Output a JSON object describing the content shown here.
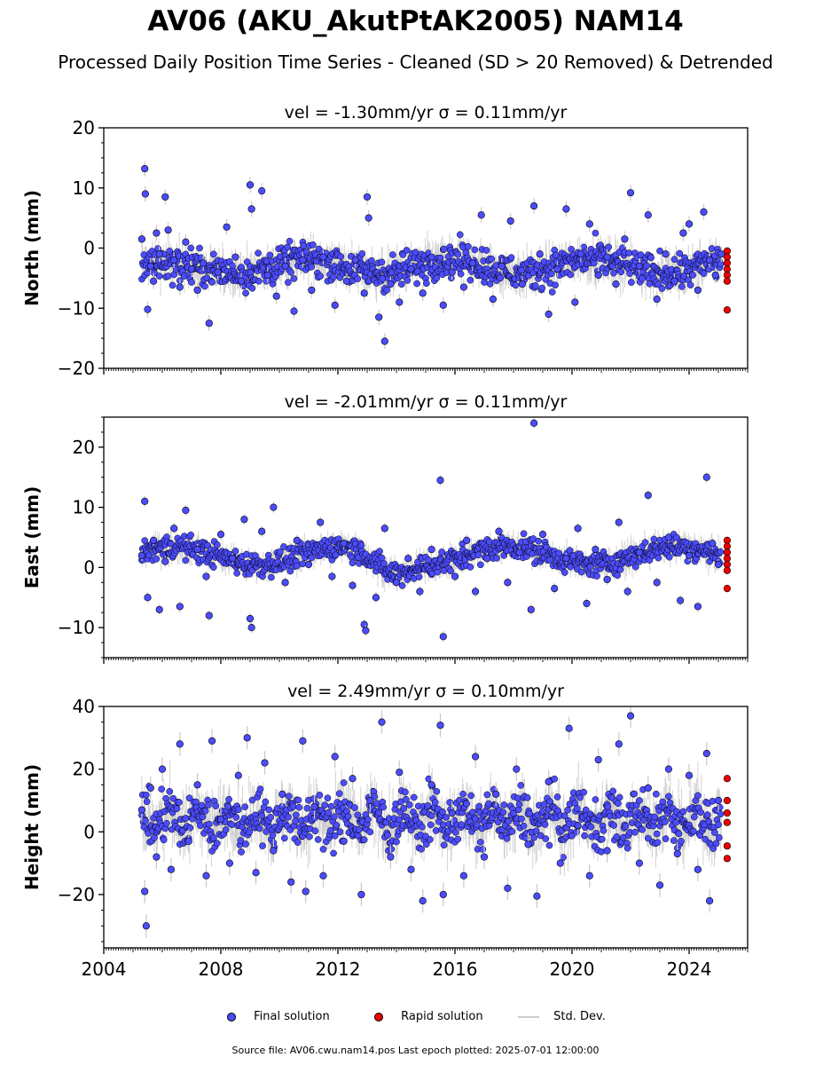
{
  "title": "AV06 (AKU_AkutPtAK2005) NAM14",
  "subtitle": "Processed Daily Position Time Series - Cleaned (SD > 20 Removed) & Detrended",
  "legend": {
    "final": "Final solution",
    "rapid": "Rapid solution",
    "stddev": "Std. Dev."
  },
  "footer": "Source file: AV06.cwu.nam14.pos  Last epoch plotted: 2025-07-01 12:00:00",
  "colors": {
    "final": "#4c4cff",
    "rapid": "#ee0000",
    "stddev": "#c8c8c8",
    "edge": "#000000"
  },
  "chart_data": [
    {
      "type": "scatter",
      "title": "vel = -1.30mm/yr   σ = 0.11mm/yr",
      "ylabel": "North (mm)",
      "ylim": [
        -20,
        20
      ],
      "yticks": [
        -20,
        -10,
        0,
        10,
        20
      ],
      "xlim": [
        2004.0,
        2026.0
      ],
      "xticks": [
        "2004",
        "2008",
        "2012",
        "2016",
        "2020",
        "2024"
      ],
      "series": [
        {
          "name": "Final solution",
          "values": [
            [
              2005.3,
              1.5
            ],
            [
              2005.4,
              13.2
            ],
            [
              2005.42,
              9.0
            ],
            [
              2005.5,
              -10.2
            ],
            [
              2005.6,
              -3.0
            ],
            [
              2005.7,
              -5.5
            ],
            [
              2005.8,
              2.5
            ],
            [
              2005.9,
              -1.0
            ],
            [
              2006.1,
              8.5
            ],
            [
              2006.2,
              3.0
            ],
            [
              2006.4,
              -2.0
            ],
            [
              2006.6,
              -6.5
            ],
            [
              2006.8,
              1.0
            ],
            [
              2007.0,
              -3.5
            ],
            [
              2007.2,
              -7.0
            ],
            [
              2007.4,
              -2.5
            ],
            [
              2007.6,
              -12.5
            ],
            [
              2007.9,
              -4.0
            ],
            [
              2008.2,
              3.5
            ],
            [
              2008.5,
              -1.5
            ],
            [
              2008.7,
              -5.5
            ],
            [
              2009.0,
              10.5
            ],
            [
              2009.05,
              6.5
            ],
            [
              2009.4,
              9.5
            ],
            [
              2009.6,
              -4.5
            ],
            [
              2009.9,
              -8.0
            ],
            [
              2010.2,
              -3.0
            ],
            [
              2010.5,
              -10.5
            ],
            [
              2010.8,
              -2.0
            ],
            [
              2011.1,
              -7.0
            ],
            [
              2011.5,
              -1.5
            ],
            [
              2011.9,
              -9.5
            ],
            [
              2012.3,
              -5.5
            ],
            [
              2012.6,
              -2.0
            ],
            [
              2012.9,
              -7.5
            ],
            [
              2013.0,
              8.5
            ],
            [
              2013.05,
              5.0
            ],
            [
              2013.4,
              -11.5
            ],
            [
              2013.6,
              -15.5
            ],
            [
              2013.8,
              -6.0
            ],
            [
              2014.1,
              -9.0
            ],
            [
              2014.5,
              -3.5
            ],
            [
              2014.9,
              -7.5
            ],
            [
              2015.2,
              -1.5
            ],
            [
              2015.6,
              -9.5
            ],
            [
              2015.9,
              -4.0
            ],
            [
              2016.3,
              -6.5
            ],
            [
              2016.6,
              -2.5
            ],
            [
              2016.9,
              5.5
            ],
            [
              2017.3,
              -8.5
            ],
            [
              2017.6,
              -3.0
            ],
            [
              2017.9,
              4.5
            ],
            [
              2018.3,
              -6.0
            ],
            [
              2018.7,
              7.0
            ],
            [
              2018.9,
              -1.0
            ],
            [
              2019.2,
              -11.0
            ],
            [
              2019.5,
              -3.5
            ],
            [
              2019.8,
              6.5
            ],
            [
              2020.1,
              -9.0
            ],
            [
              2020.3,
              -1.0
            ],
            [
              2020.6,
              4.0
            ],
            [
              2020.9,
              -4.5
            ],
            [
              2021.2,
              -1.5
            ],
            [
              2021.5,
              -6.0
            ],
            [
              2021.8,
              1.5
            ],
            [
              2022.0,
              9.2
            ],
            [
              2022.3,
              -3.0
            ],
            [
              2022.6,
              5.5
            ],
            [
              2022.9,
              -8.5
            ],
            [
              2023.2,
              -1.0
            ],
            [
              2023.5,
              -5.5
            ],
            [
              2023.8,
              2.5
            ],
            [
              2024.0,
              4.0
            ],
            [
              2024.3,
              -7.0
            ],
            [
              2024.5,
              6.0
            ],
            [
              2024.7,
              -2.0
            ],
            [
              2024.9,
              -4.5
            ],
            [
              2025.1,
              -1.0
            ]
          ]
        },
        {
          "name": "Rapid solution",
          "values": [
            [
              2025.3,
              -0.5
            ],
            [
              2025.3,
              -1.5
            ],
            [
              2025.3,
              -2.5
            ],
            [
              2025.3,
              -3.5
            ],
            [
              2025.3,
              -4.5
            ],
            [
              2025.3,
              -5.5
            ],
            [
              2025.3,
              -10.3
            ]
          ]
        }
      ]
    },
    {
      "type": "scatter",
      "title": "vel = -2.01mm/yr   σ = 0.11mm/yr",
      "ylabel": "East (mm)",
      "ylim": [
        -15,
        25
      ],
      "yticks": [
        -10,
        0,
        10,
        20
      ],
      "xlim": [
        2004.0,
        2026.0
      ],
      "xticks": [
        "2004",
        "2008",
        "2012",
        "2016",
        "2020",
        "2024"
      ],
      "series": [
        {
          "name": "Final solution",
          "values": [
            [
              2005.3,
              2.0
            ],
            [
              2005.4,
              11.0
            ],
            [
              2005.5,
              -5.0
            ],
            [
              2005.7,
              4.5
            ],
            [
              2005.9,
              -7.0
            ],
            [
              2006.1,
              1.0
            ],
            [
              2006.4,
              6.5
            ],
            [
              2006.6,
              -6.5
            ],
            [
              2006.8,
              9.5
            ],
            [
              2007.2,
              3.0
            ],
            [
              2007.5,
              -1.5
            ],
            [
              2007.6,
              -8.0
            ],
            [
              2008.0,
              5.5
            ],
            [
              2008.4,
              1.5
            ],
            [
              2008.8,
              8.0
            ],
            [
              2009.0,
              -8.5
            ],
            [
              2009.05,
              -10.0
            ],
            [
              2009.4,
              6.0
            ],
            [
              2009.8,
              10.0
            ],
            [
              2010.2,
              -2.5
            ],
            [
              2010.6,
              4.5
            ],
            [
              2011.0,
              0.5
            ],
            [
              2011.4,
              7.5
            ],
            [
              2011.8,
              -1.5
            ],
            [
              2012.2,
              4.0
            ],
            [
              2012.5,
              -3.0
            ],
            [
              2012.9,
              -9.5
            ],
            [
              2012.95,
              -10.5
            ],
            [
              2013.3,
              -5.0
            ],
            [
              2013.6,
              6.5
            ],
            [
              2014.0,
              -2.5
            ],
            [
              2014.4,
              1.5
            ],
            [
              2014.8,
              -4.0
            ],
            [
              2015.2,
              3.0
            ],
            [
              2015.5,
              14.5
            ],
            [
              2015.6,
              -11.5
            ],
            [
              2016.0,
              -1.5
            ],
            [
              2016.4,
              4.5
            ],
            [
              2016.7,
              -4.0
            ],
            [
              2017.1,
              1.5
            ],
            [
              2017.5,
              6.0
            ],
            [
              2017.8,
              -2.5
            ],
            [
              2018.2,
              2.5
            ],
            [
              2018.6,
              -7.0
            ],
            [
              2018.7,
              24.0
            ],
            [
              2019.0,
              5.5
            ],
            [
              2019.4,
              -3.5
            ],
            [
              2019.8,
              1.5
            ],
            [
              2020.2,
              6.5
            ],
            [
              2020.5,
              -6.0
            ],
            [
              2020.8,
              3.0
            ],
            [
              2021.2,
              -2.0
            ],
            [
              2021.6,
              7.5
            ],
            [
              2021.9,
              -4.0
            ],
            [
              2022.3,
              2.5
            ],
            [
              2022.6,
              12.0
            ],
            [
              2022.9,
              -2.5
            ],
            [
              2023.3,
              5.0
            ],
            [
              2023.7,
              -5.5
            ],
            [
              2024.0,
              2.0
            ],
            [
              2024.3,
              -6.5
            ],
            [
              2024.6,
              15.0
            ],
            [
              2024.8,
              4.0
            ],
            [
              2025.0,
              0.5
            ]
          ]
        },
        {
          "name": "Rapid solution",
          "values": [
            [
              2025.3,
              4.5
            ],
            [
              2025.3,
              3.5
            ],
            [
              2025.3,
              2.5
            ],
            [
              2025.3,
              1.5
            ],
            [
              2025.3,
              0.5
            ],
            [
              2025.3,
              -0.5
            ],
            [
              2025.3,
              -3.5
            ]
          ]
        }
      ]
    },
    {
      "type": "scatter",
      "title": "vel = 2.49mm/yr   σ = 0.10mm/yr",
      "ylabel": "Height (mm)",
      "ylim": [
        -37,
        40
      ],
      "yticks": [
        -20,
        0,
        20,
        40
      ],
      "xlim": [
        2004.0,
        2026.0
      ],
      "xticks": [
        "2004",
        "2008",
        "2012",
        "2016",
        "2020",
        "2024"
      ],
      "series": [
        {
          "name": "Final solution",
          "values": [
            [
              2005.3,
              7.0
            ],
            [
              2005.4,
              -19.0
            ],
            [
              2005.45,
              -30.0
            ],
            [
              2005.6,
              14.0
            ],
            [
              2005.8,
              -8.0
            ],
            [
              2006.0,
              20.0
            ],
            [
              2006.3,
              -12.0
            ],
            [
              2006.6,
              28.0
            ],
            [
              2006.9,
              -3.0
            ],
            [
              2007.2,
              15.0
            ],
            [
              2007.5,
              -14.0
            ],
            [
              2007.7,
              29.0
            ],
            [
              2008.0,
              4.0
            ],
            [
              2008.3,
              -10.0
            ],
            [
              2008.6,
              18.0
            ],
            [
              2008.9,
              30.0
            ],
            [
              2009.2,
              -13.0
            ],
            [
              2009.5,
              22.0
            ],
            [
              2009.8,
              -6.0
            ],
            [
              2010.1,
              12.0
            ],
            [
              2010.4,
              -16.0
            ],
            [
              2010.8,
              29.0
            ],
            [
              2010.9,
              -19.0
            ],
            [
              2011.2,
              8.0
            ],
            [
              2011.5,
              -14.0
            ],
            [
              2011.9,
              24.0
            ],
            [
              2012.2,
              -3.0
            ],
            [
              2012.5,
              17.0
            ],
            [
              2012.8,
              -20.0
            ],
            [
              2013.1,
              10.0
            ],
            [
              2013.5,
              35.0
            ],
            [
              2013.8,
              -8.0
            ],
            [
              2014.1,
              19.0
            ],
            [
              2014.5,
              -12.0
            ],
            [
              2014.9,
              -22.0
            ],
            [
              2015.2,
              15.0
            ],
            [
              2015.5,
              34.0
            ],
            [
              2015.6,
              -20.0
            ],
            [
              2015.9,
              6.0
            ],
            [
              2016.3,
              -14.0
            ],
            [
              2016.7,
              24.0
            ],
            [
              2017.0,
              -8.0
            ],
            [
              2017.4,
              12.0
            ],
            [
              2017.8,
              -18.0
            ],
            [
              2018.1,
              20.0
            ],
            [
              2018.5,
              -4.0
            ],
            [
              2018.8,
              -20.5
            ],
            [
              2019.2,
              16.0
            ],
            [
              2019.6,
              -10.0
            ],
            [
              2019.9,
              33.0
            ],
            [
              2020.2,
              2.0
            ],
            [
              2020.6,
              -14.0
            ],
            [
              2020.9,
              23.0
            ],
            [
              2021.2,
              -6.0
            ],
            [
              2021.6,
              28.0
            ],
            [
              2022.0,
              37.0
            ],
            [
              2022.3,
              -10.0
            ],
            [
              2022.6,
              14.0
            ],
            [
              2023.0,
              -17.0
            ],
            [
              2023.3,
              20.0
            ],
            [
              2023.6,
              -7.0
            ],
            [
              2024.0,
              18.0
            ],
            [
              2024.3,
              -12.0
            ],
            [
              2024.6,
              25.0
            ],
            [
              2024.7,
              -22.0
            ],
            [
              2025.0,
              10.0
            ]
          ]
        },
        {
          "name": "Rapid solution",
          "values": [
            [
              2025.3,
              17.0
            ],
            [
              2025.3,
              10.0
            ],
            [
              2025.3,
              6.0
            ],
            [
              2025.3,
              3.0
            ],
            [
              2025.3,
              -4.5
            ],
            [
              2025.3,
              -8.5
            ]
          ]
        }
      ]
    }
  ]
}
